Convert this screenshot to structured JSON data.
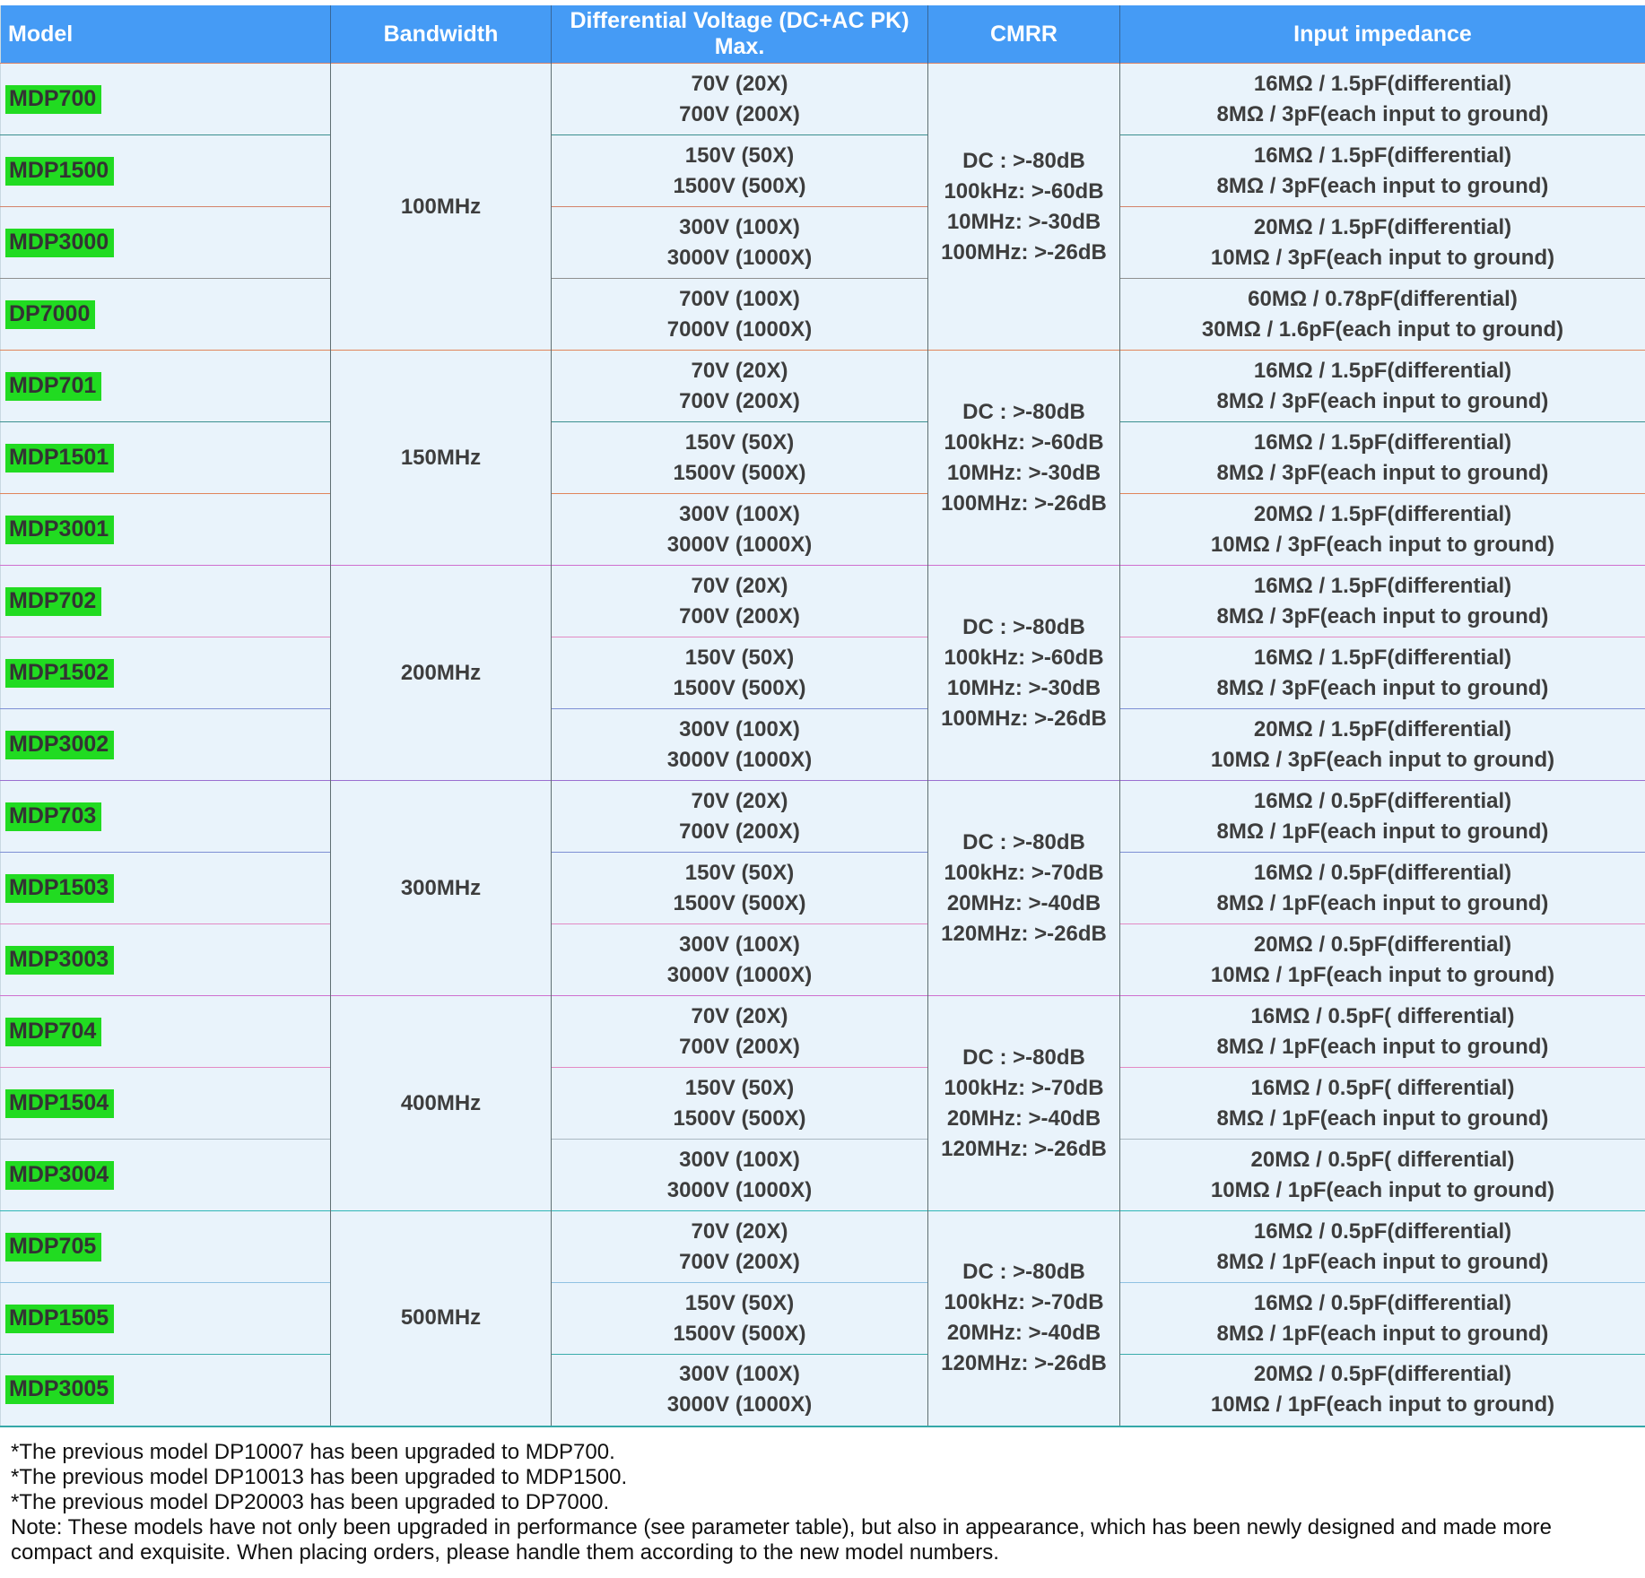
{
  "colors": {
    "header_bg": "#459BF5",
    "row_bg": "#E9F3FB",
    "model_highlight": "#21DB21",
    "cell_text": "#3D3D3D"
  },
  "table": {
    "headers": [
      "Model",
      "Bandwidth",
      "Differential Voltage (DC+AC PK) Max.",
      "CMRR",
      "Input impedance"
    ],
    "groups": [
      {
        "bandwidth": "100MHz",
        "cmrr": [
          "DC : >-80dB",
          "100kHz: >-60dB",
          "10MHz: >-30dB",
          "100MHz: >-26dB"
        ],
        "rows": [
          {
            "model": "MDP700",
            "voltage": [
              "70V (20X)",
              "700V (200X)"
            ],
            "impedance": [
              "16MΩ / 1.5pF(differential)",
              "8MΩ / 3pF(each input to ground)"
            ]
          },
          {
            "model": "MDP1500",
            "voltage": [
              "150V (50X)",
              "1500V (500X)"
            ],
            "impedance": [
              "16MΩ / 1.5pF(differential)",
              "8MΩ / 3pF(each input to ground)"
            ]
          },
          {
            "model": "MDP3000",
            "voltage": [
              "300V (100X)",
              "3000V (1000X)"
            ],
            "impedance": [
              "20MΩ / 1.5pF(differential)",
              "10MΩ / 3pF(each input to ground)"
            ]
          },
          {
            "model": "DP7000",
            "voltage": [
              "700V (100X)",
              "7000V (1000X)"
            ],
            "impedance": [
              "60MΩ / 0.78pF(differential)",
              "30MΩ / 1.6pF(each input to ground)"
            ]
          }
        ]
      },
      {
        "bandwidth": "150MHz",
        "cmrr": [
          "DC : >-80dB",
          "100kHz: >-60dB",
          "10MHz: >-30dB",
          "100MHz: >-26dB"
        ],
        "rows": [
          {
            "model": "MDP701",
            "voltage": [
              "70V (20X)",
              "700V (200X)"
            ],
            "impedance": [
              "16MΩ / 1.5pF(differential)",
              "8MΩ / 3pF(each input to ground)"
            ]
          },
          {
            "model": "MDP1501",
            "voltage": [
              "150V (50X)",
              "1500V (500X)"
            ],
            "impedance": [
              "16MΩ / 1.5pF(differential)",
              "8MΩ / 3pF(each input to ground)"
            ]
          },
          {
            "model": "MDP3001",
            "voltage": [
              "300V (100X)",
              "3000V (1000X)"
            ],
            "impedance": [
              "20MΩ / 1.5pF(differential)",
              "10MΩ / 3pF(each input to ground)"
            ]
          }
        ]
      },
      {
        "bandwidth": "200MHz",
        "cmrr": [
          "DC : >-80dB",
          "100kHz: >-60dB",
          "10MHz: >-30dB",
          "100MHz: >-26dB"
        ],
        "rows": [
          {
            "model": "MDP702",
            "voltage": [
              "70V (20X)",
              "700V (200X)"
            ],
            "impedance": [
              "16MΩ / 1.5pF(differential)",
              "8MΩ / 3pF(each input to ground)"
            ]
          },
          {
            "model": "MDP1502",
            "voltage": [
              "150V (50X)",
              "1500V (500X)"
            ],
            "impedance": [
              "16MΩ / 1.5pF(differential)",
              "8MΩ / 3pF(each input to ground)"
            ]
          },
          {
            "model": "MDP3002",
            "voltage": [
              "300V (100X)",
              "3000V (1000X)"
            ],
            "impedance": [
              "20MΩ / 1.5pF(differential)",
              "10MΩ / 3pF(each input to ground)"
            ]
          }
        ]
      },
      {
        "bandwidth": "300MHz",
        "cmrr": [
          "DC : >-80dB",
          "100kHz: >-70dB",
          "20MHz: >-40dB",
          "120MHz: >-26dB"
        ],
        "rows": [
          {
            "model": "MDP703",
            "voltage": [
              "70V (20X)",
              "700V (200X)"
            ],
            "impedance": [
              "16MΩ / 0.5pF(differential)",
              "8MΩ / 1pF(each input to ground)"
            ]
          },
          {
            "model": "MDP1503",
            "voltage": [
              "150V (50X)",
              "1500V (500X)"
            ],
            "impedance": [
              "16MΩ / 0.5pF(differential)",
              "8MΩ / 1pF(each input to ground)"
            ]
          },
          {
            "model": "MDP3003",
            "voltage": [
              "300V (100X)",
              "3000V (1000X)"
            ],
            "impedance": [
              "20MΩ / 0.5pF(differential)",
              "10MΩ / 1pF(each input to ground)"
            ]
          }
        ]
      },
      {
        "bandwidth": "400MHz",
        "cmrr": [
          "DC : >-80dB",
          "100kHz: >-70dB",
          "20MHz: >-40dB",
          "120MHz: >-26dB"
        ],
        "rows": [
          {
            "model": "MDP704",
            "voltage": [
              "70V (20X)",
              "700V (200X)"
            ],
            "impedance": [
              "16MΩ / 0.5pF( differential)",
              "8MΩ / 1pF(each input to ground)"
            ]
          },
          {
            "model": "MDP1504",
            "voltage": [
              "150V (50X)",
              "1500V (500X)"
            ],
            "impedance": [
              "16MΩ / 0.5pF( differential)",
              "8MΩ / 1pF(each input to ground)"
            ]
          },
          {
            "model": "MDP3004",
            "voltage": [
              "300V (100X)",
              "3000V (1000X)"
            ],
            "impedance": [
              "20MΩ / 0.5pF( differential)",
              "10MΩ / 1pF(each input to ground)"
            ]
          }
        ]
      },
      {
        "bandwidth": "500MHz",
        "cmrr": [
          "DC : >-80dB",
          "100kHz: >-70dB",
          "20MHz: >-40dB",
          "120MHz: >-26dB"
        ],
        "rows": [
          {
            "model": "MDP705",
            "voltage": [
              "70V (20X)",
              "700V (200X)"
            ],
            "impedance": [
              "16MΩ / 0.5pF(differential)",
              "8MΩ / 1pF(each input to ground)"
            ]
          },
          {
            "model": "MDP1505",
            "voltage": [
              "150V (50X)",
              "1500V (500X)"
            ],
            "impedance": [
              "16MΩ / 0.5pF(differential)",
              "8MΩ / 1pF(each input to ground)"
            ]
          },
          {
            "model": "MDP3005",
            "voltage": [
              "300V (100X)",
              "3000V (1000X)"
            ],
            "impedance": [
              "20MΩ / 0.5pF(differential)",
              "10MΩ / 1pF(each input to ground)"
            ]
          }
        ]
      }
    ]
  },
  "notes": [
    "*The previous model DP10007 has been upgraded to MDP700.",
    "*The previous model DP10013 has been upgraded to MDP1500.",
    "*The previous model DP20003 has been upgraded to DP7000.",
    "Note: These models have not only been upgraded in performance (see parameter table), but also in appearance, which has been newly designed and made more compact and exquisite. When placing orders, please handle them according to the new model numbers."
  ]
}
